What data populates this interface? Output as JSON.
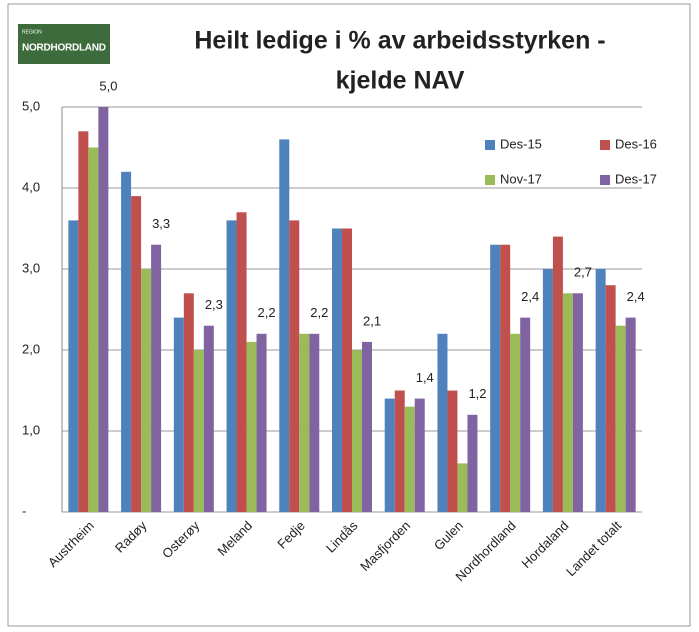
{
  "logo": {
    "small": "REGION",
    "main": "NORDHORDLAND"
  },
  "chart_data": {
    "type": "bar",
    "title": [
      "Heilt ledige i % av arbeidsstyrken -",
      "kjelde NAV"
    ],
    "categories": [
      "Austrheim",
      "Radøy",
      "Osterøy",
      "Meland",
      "Fedje",
      "Lindås",
      "Masfjorden",
      "Gulen",
      "Nordhordland",
      "Hordaland",
      "Landet totalt"
    ],
    "series": [
      {
        "name": "Des-15",
        "color": "#4f81bd",
        "values": [
          3.6,
          4.2,
          2.4,
          3.6,
          4.6,
          3.5,
          1.4,
          2.2,
          3.3,
          3.0,
          3.0
        ]
      },
      {
        "name": "Des-16",
        "color": "#c0504d",
        "values": [
          4.7,
          3.9,
          2.7,
          3.7,
          3.6,
          3.5,
          1.5,
          1.5,
          3.3,
          3.4,
          2.8
        ]
      },
      {
        "name": "Nov-17",
        "color": "#9bbb59",
        "values": [
          4.5,
          3.0,
          2.0,
          2.1,
          2.2,
          2.0,
          1.3,
          0.6,
          2.2,
          2.7,
          2.3
        ]
      },
      {
        "name": "Des-17",
        "color": "#8064a2",
        "values": [
          5.0,
          3.3,
          2.3,
          2.2,
          2.2,
          2.1,
          1.4,
          1.2,
          2.4,
          2.7,
          2.4
        ],
        "value_labels": [
          "5,0",
          "3,3",
          "2,3",
          "2,2",
          "2,2",
          "2,1",
          "1,4",
          "1,2",
          "2,4",
          "2,7",
          "2,4"
        ]
      }
    ],
    "ylim": [
      0,
      6
    ],
    "yticks": [
      {
        "value": 0,
        "label": "-"
      },
      {
        "value": 1,
        "label": "1,0"
      },
      {
        "value": 2,
        "label": "2,0"
      },
      {
        "value": 3,
        "label": "3,0"
      },
      {
        "value": 4,
        "label": "4,0"
      },
      {
        "value": 5,
        "label": "5,0"
      }
    ],
    "grid": true,
    "legend": "top-right"
  }
}
